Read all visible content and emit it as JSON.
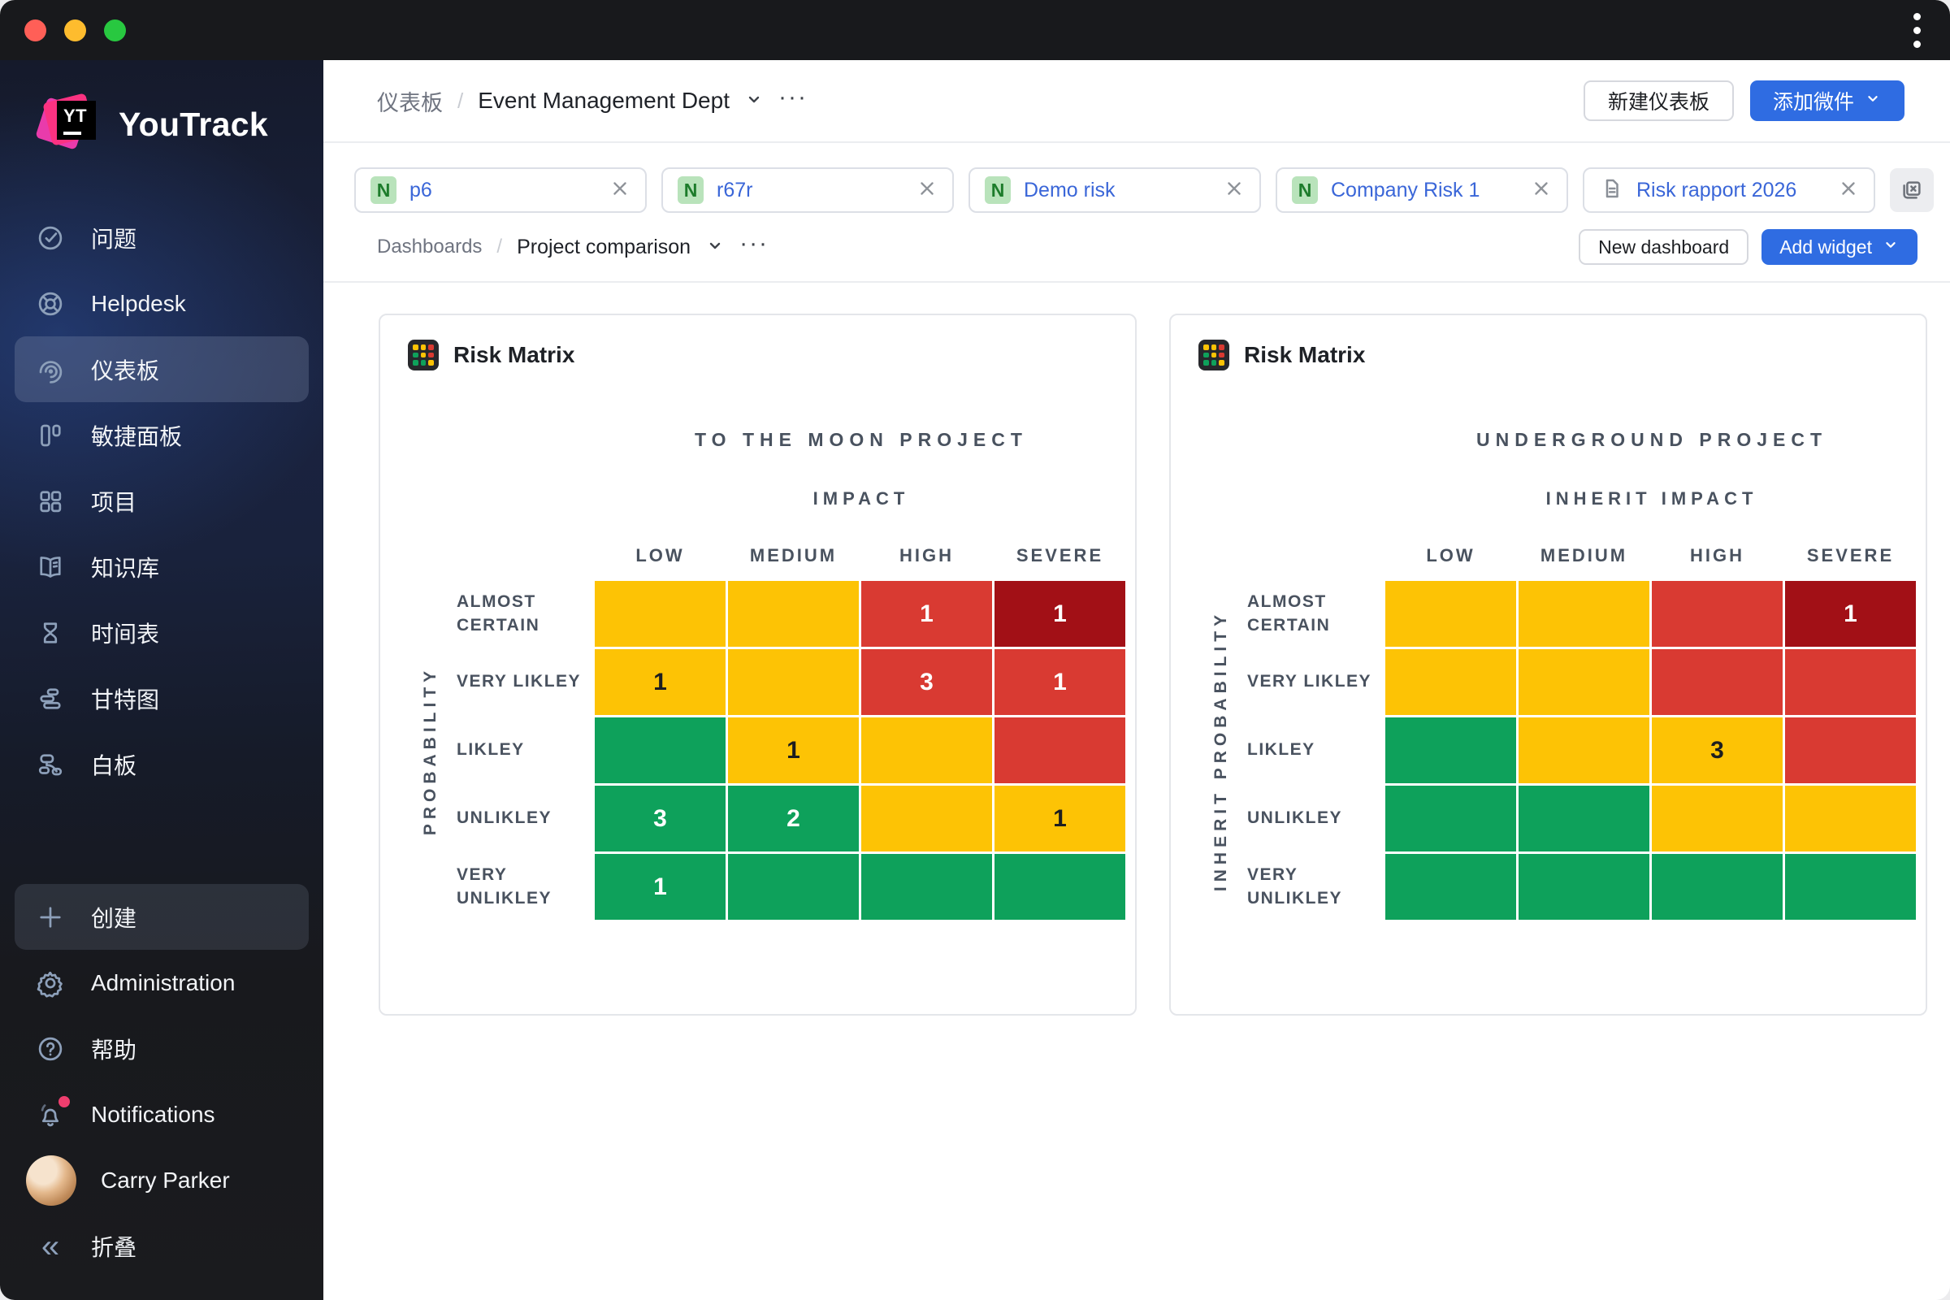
{
  "window": {
    "traffic_lights": [
      "#ff5f57",
      "#febc2e",
      "#28c840"
    ]
  },
  "sidebar": {
    "logo_badge": "YT",
    "logo_text": "YouTrack",
    "items": [
      {
        "label": "问题"
      },
      {
        "label": "Helpdesk"
      },
      {
        "label": "仪表板",
        "active": true
      },
      {
        "label": "敏捷面板"
      },
      {
        "label": "项目"
      },
      {
        "label": "知识库"
      },
      {
        "label": "时间表"
      },
      {
        "label": "甘特图"
      },
      {
        "label": "白板"
      }
    ],
    "footer": [
      {
        "label": "创建",
        "highlighted": true
      },
      {
        "label": "Administration"
      },
      {
        "label": "帮助"
      },
      {
        "label": "Notifications",
        "has_badge": true
      },
      {
        "label": "Carry Parker",
        "is_user": true
      },
      {
        "label": "折叠"
      }
    ]
  },
  "header": {
    "breadcrumb_root": "仪表板",
    "breadcrumb_sep": "/",
    "breadcrumb_current": "Event Management Dept",
    "new_dashboard_label": "新建仪表板",
    "add_widget_label": "添加微件"
  },
  "tabs": [
    {
      "badge": "N",
      "label": "p6"
    },
    {
      "badge": "N",
      "label": "r67r"
    },
    {
      "badge": "N",
      "label": "Demo risk"
    },
    {
      "badge": "N",
      "label": "Company Risk 1"
    },
    {
      "badge": "doc",
      "label": "Risk rapport 2026"
    }
  ],
  "subheader": {
    "breadcrumb_root": "Dashboards",
    "breadcrumb_sep": "/",
    "breadcrumb_current": "Project comparison",
    "new_dashboard_label": "New dashboard",
    "add_widget_label": "Add widget"
  },
  "colors": {
    "accent_blue": "#2f6ce2",
    "yellow": "#fdc305",
    "red": "#d93a32",
    "dark_red": "#a21016",
    "green": "#0ea15b",
    "chip_label_blue": "#3a66d8",
    "badge_green_bg": "#b9e3bb",
    "badge_green_text": "#1d7c2b",
    "notification_dot": "#ef3e6e"
  },
  "chart_data": [
    {
      "type": "heatmap",
      "widget_title": "Risk Matrix",
      "title": "TO THE MOON PROJECT",
      "xlabel": "IMPACT",
      "ylabel": "PROBABILITY",
      "columns": [
        "LOW",
        "MEDIUM",
        "HIGH",
        "SEVERE"
      ],
      "rows": [
        "ALMOST CERTAIN",
        "VERY LIKLEY",
        "LIKLEY",
        "UNLIKLEY",
        "VERY UNLIKLEY"
      ],
      "cell_colors": [
        [
          "yellow",
          "yellow",
          "red",
          "dark_red"
        ],
        [
          "yellow",
          "yellow",
          "red",
          "red"
        ],
        [
          "green",
          "yellow",
          "yellow",
          "red"
        ],
        [
          "green",
          "green",
          "yellow",
          "yellow"
        ],
        [
          "green",
          "green",
          "green",
          "green"
        ]
      ],
      "values": [
        [
          null,
          null,
          1,
          1
        ],
        [
          1,
          null,
          3,
          1
        ],
        [
          null,
          1,
          null,
          null
        ],
        [
          3,
          2,
          null,
          1
        ],
        [
          1,
          null,
          null,
          null
        ]
      ]
    },
    {
      "type": "heatmap",
      "widget_title": "Risk Matrix",
      "title": "UNDERGROUND PROJECT",
      "xlabel": "INHERIT IMPACT",
      "ylabel": "INHERIT PROBABILITY",
      "columns": [
        "LOW",
        "MEDIUM",
        "HIGH",
        "SEVERE"
      ],
      "rows": [
        "ALMOST CERTAIN",
        "VERY LIKLEY",
        "LIKLEY",
        "UNLIKLEY",
        "VERY UNLIKLEY"
      ],
      "cell_colors": [
        [
          "yellow",
          "yellow",
          "red",
          "dark_red"
        ],
        [
          "yellow",
          "yellow",
          "red",
          "red"
        ],
        [
          "green",
          "yellow",
          "yellow",
          "red"
        ],
        [
          "green",
          "green",
          "yellow",
          "yellow"
        ],
        [
          "green",
          "green",
          "green",
          "green"
        ]
      ],
      "values": [
        [
          null,
          null,
          null,
          1
        ],
        [
          null,
          null,
          null,
          null
        ],
        [
          null,
          null,
          3,
          null
        ],
        [
          null,
          null,
          null,
          null
        ],
        [
          null,
          null,
          null,
          null
        ]
      ]
    }
  ]
}
